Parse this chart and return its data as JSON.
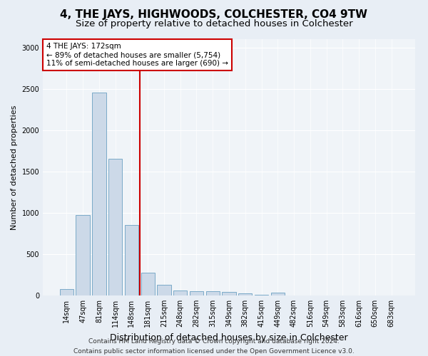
{
  "title": "4, THE JAYS, HIGHWOODS, COLCHESTER, CO4 9TW",
  "subtitle": "Size of property relative to detached houses in Colchester",
  "xlabel": "Distribution of detached houses by size in Colchester",
  "ylabel": "Number of detached properties",
  "categories": [
    "14sqm",
    "47sqm",
    "81sqm",
    "114sqm",
    "148sqm",
    "181sqm",
    "215sqm",
    "248sqm",
    "282sqm",
    "315sqm",
    "349sqm",
    "382sqm",
    "415sqm",
    "449sqm",
    "482sqm",
    "516sqm",
    "549sqm",
    "583sqm",
    "616sqm",
    "650sqm",
    "683sqm"
  ],
  "values": [
    75,
    975,
    2450,
    1650,
    850,
    275,
    125,
    60,
    50,
    50,
    40,
    30,
    5,
    35,
    0,
    0,
    0,
    0,
    0,
    0,
    0
  ],
  "bar_color": "#ccd9e8",
  "bar_edge_color": "#7aaac8",
  "property_index": 5,
  "property_label": "4 THE JAYS: 172sqm",
  "annotation_line1": "← 89% of detached houses are smaller (5,754)",
  "annotation_line2": "11% of semi-detached houses are larger (690) →",
  "annotation_box_color": "#ffffff",
  "annotation_box_edge": "#cc0000",
  "vline_color": "#cc0000",
  "ylim": [
    0,
    3100
  ],
  "yticks": [
    0,
    500,
    1000,
    1500,
    2000,
    2500,
    3000
  ],
  "bg_color": "#e8eef5",
  "plot_bg_color": "#f0f4f8",
  "footer_line1": "Contains HM Land Registry data © Crown copyright and database right 2024.",
  "footer_line2": "Contains public sector information licensed under the Open Government Licence v3.0.",
  "title_fontsize": 11,
  "subtitle_fontsize": 9.5,
  "xlabel_fontsize": 9,
  "ylabel_fontsize": 8,
  "tick_fontsize": 7,
  "footer_fontsize": 6.5,
  "annot_fontsize": 7.5
}
